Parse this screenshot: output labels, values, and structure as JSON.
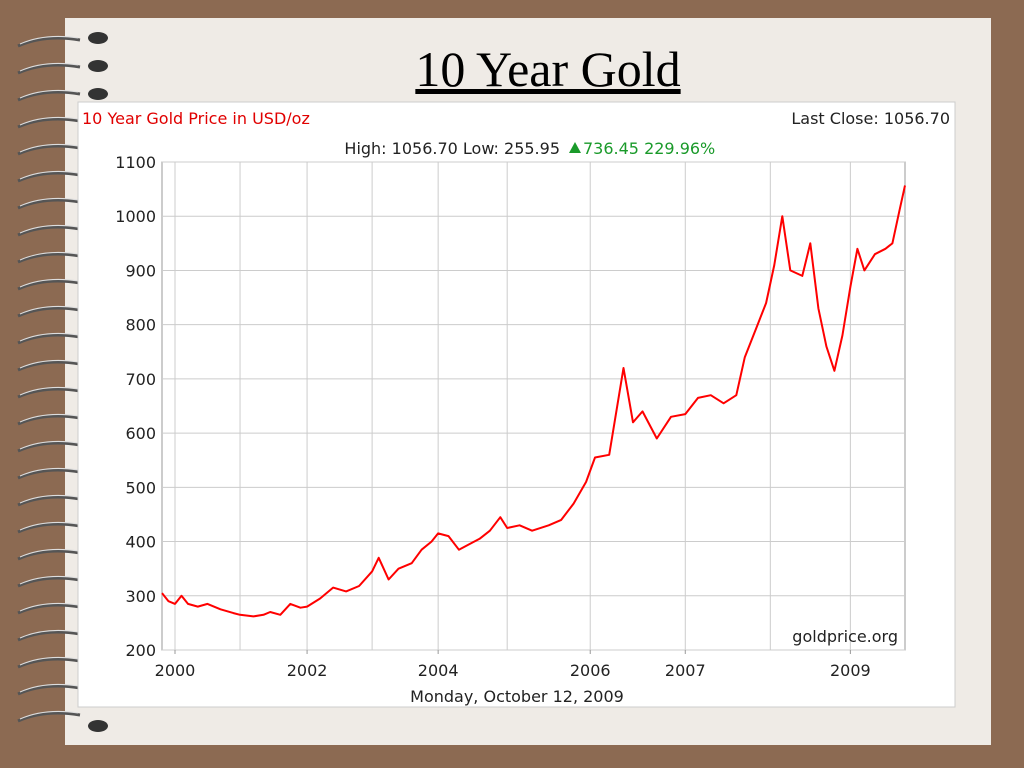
{
  "chart_data": {
    "type": "line",
    "title": "10 Year Gold",
    "chart_title": "10 Year Gold Price in USD/oz",
    "last_close": "Last Close: 1056.70",
    "high_low": "High: 1056.70 Low: 255.95",
    "change": "736.45 229.96%",
    "source": "goldprice.org",
    "date": "Monday, October 12, 2009",
    "x": [
      1999.8,
      1999.9,
      2000.0,
      2000.1,
      2000.2,
      2000.35,
      2000.5,
      2000.7,
      2000.9,
      2001.0,
      2001.2,
      2001.35,
      2001.45,
      2001.6,
      2001.75,
      2001.9,
      2002.0,
      2002.2,
      2002.4,
      2002.6,
      2002.8,
      2003.0,
      2003.1,
      2003.25,
      2003.4,
      2003.6,
      2003.75,
      2003.9,
      2004.0,
      2004.15,
      2004.3,
      2004.45,
      2004.6,
      2004.75,
      2004.9,
      2005.0,
      2005.15,
      2005.3,
      2005.5,
      2005.65,
      2005.8,
      2005.95,
      2006.05,
      2006.2,
      2006.35,
      2006.45,
      2006.55,
      2006.7,
      2006.85,
      2007.0,
      2007.15,
      2007.3,
      2007.45,
      2007.6,
      2007.7,
      2007.85,
      2007.95,
      2008.05,
      2008.15,
      2008.25,
      2008.4,
      2008.5,
      2008.6,
      2008.7,
      2008.8,
      2008.9,
      2009.0,
      2009.1,
      2009.2,
      2009.35,
      2009.5,
      2009.6,
      2009.7,
      2009.78
    ],
    "series": [
      {
        "name": "Gold",
        "color": "#ff0000",
        "values": [
          305,
          290,
          285,
          300,
          285,
          280,
          285,
          275,
          268,
          265,
          262,
          265,
          270,
          265,
          285,
          278,
          280,
          295,
          315,
          308,
          318,
          345,
          370,
          330,
          350,
          360,
          385,
          400,
          415,
          410,
          385,
          395,
          405,
          420,
          445,
          425,
          430,
          420,
          430,
          440,
          470,
          510,
          555,
          560,
          720,
          620,
          640,
          590,
          630,
          635,
          665,
          670,
          655,
          670,
          740,
          800,
          840,
          910,
          1000,
          900,
          890,
          950,
          830,
          760,
          715,
          780,
          870,
          940,
          900,
          930,
          940,
          950,
          1010,
          1056.7
        ]
      }
    ],
    "xlim": [
      1999.8,
      2009.78
    ],
    "xticks": [
      2000,
      2002,
      2004,
      2006,
      2007,
      2009
    ],
    "xgrid": [
      2000,
      2001,
      2002,
      2003,
      2004,
      2005,
      2006,
      2007,
      2008,
      2009
    ],
    "ylim": [
      200,
      1100
    ],
    "yticks": [
      200,
      300,
      400,
      500,
      600,
      700,
      800,
      900,
      1000,
      1100
    ],
    "grid": true
  }
}
